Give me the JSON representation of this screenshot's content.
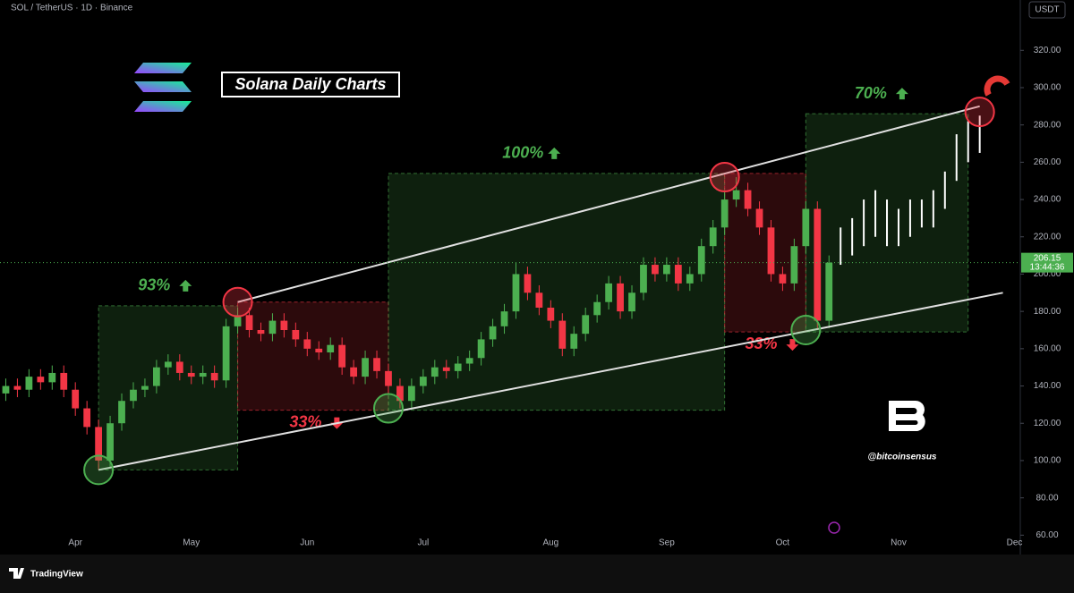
{
  "chart_data": {
    "type": "candlestick",
    "symbol": "SOL / TetherUS · 1D · Binance",
    "currency": "USDT",
    "title": "Solana Daily Charts",
    "watermark": "@bitcoinsensus",
    "brand": "TradingView",
    "categories": [
      "",
      null,
      null,
      null,
      null,
      null,
      "Apr",
      null,
      null,
      null,
      null,
      null,
      null,
      null,
      null,
      null,
      "May",
      null,
      null,
      null,
      null,
      null,
      null,
      null,
      null,
      null,
      "Jun",
      null,
      null,
      null,
      null,
      null,
      null,
      null,
      null,
      null,
      "Jul",
      null,
      null,
      null,
      null,
      null,
      null,
      null,
      null,
      null,
      null,
      "Aug",
      null,
      null,
      null,
      null,
      null,
      null,
      null,
      null,
      null,
      "Sep",
      null,
      null,
      null,
      null,
      null,
      null,
      null,
      null,
      null,
      "Oct",
      null,
      null,
      null,
      null,
      null,
      null,
      null,
      null,
      null,
      "Nov",
      null,
      null,
      null,
      null,
      null,
      null,
      null,
      null,
      null,
      "Dec"
    ],
    "candles": {
      "up_color": "#4caf50",
      "down_color": "#f23645",
      "open": [
        136,
        140,
        138,
        145,
        142,
        147,
        138,
        128,
        118,
        100,
        120,
        132,
        138,
        140,
        150,
        153,
        147,
        145,
        147,
        143,
        172,
        178,
        170,
        168,
        175,
        170,
        165,
        160,
        158,
        162,
        150,
        145,
        155,
        148,
        140,
        132,
        140,
        145,
        150,
        148,
        152,
        155,
        165,
        172,
        180,
        200,
        190,
        182,
        175,
        160,
        168,
        178,
        185,
        195,
        180,
        190,
        205,
        200,
        205,
        195,
        200,
        215,
        225,
        240,
        245,
        235,
        225,
        200,
        195,
        215,
        235,
        175,
        null,
        null,
        null,
        null,
        null,
        null,
        null,
        null,
        null,
        null,
        null,
        null,
        null,
        null,
        null,
        null
      ],
      "high": [
        144,
        144,
        149,
        149,
        151,
        151,
        142,
        132,
        122,
        124,
        136,
        142,
        144,
        154,
        157,
        157,
        151,
        151,
        151,
        176,
        182,
        182,
        174,
        179,
        179,
        174,
        169,
        164,
        166,
        166,
        154,
        159,
        159,
        152,
        144,
        144,
        149,
        154,
        154,
        156,
        159,
        169,
        176,
        184,
        206,
        204,
        194,
        186,
        179,
        172,
        182,
        189,
        199,
        199,
        194,
        209,
        209,
        209,
        209,
        204,
        219,
        229,
        244,
        252,
        249,
        239,
        229,
        204,
        219,
        239,
        239,
        210,
        null,
        null,
        null,
        null,
        null,
        null,
        null,
        null,
        null,
        null,
        null,
        null,
        null,
        null,
        null,
        null
      ],
      "low": [
        132,
        134,
        134,
        138,
        138,
        134,
        124,
        114,
        95,
        96,
        116,
        128,
        134,
        136,
        146,
        143,
        141,
        141,
        139,
        139,
        168,
        166,
        164,
        164,
        166,
        161,
        156,
        154,
        154,
        146,
        141,
        141,
        144,
        136,
        128,
        128,
        136,
        141,
        144,
        144,
        148,
        151,
        161,
        168,
        176,
        186,
        178,
        171,
        156,
        156,
        164,
        174,
        181,
        176,
        176,
        186,
        196,
        196,
        191,
        191,
        196,
        211,
        221,
        236,
        231,
        221,
        196,
        191,
        191,
        211,
        171,
        171,
        null,
        null,
        null,
        null,
        null,
        null,
        null,
        null,
        null,
        null,
        null,
        null,
        null,
        null,
        null,
        null
      ],
      "close": [
        140,
        138,
        145,
        142,
        147,
        138,
        128,
        118,
        100,
        120,
        132,
        138,
        140,
        150,
        153,
        147,
        145,
        147,
        143,
        172,
        178,
        170,
        168,
        175,
        170,
        165,
        160,
        158,
        162,
        150,
        145,
        155,
        148,
        140,
        132,
        140,
        145,
        150,
        148,
        152,
        155,
        165,
        172,
        180,
        200,
        190,
        182,
        175,
        160,
        168,
        178,
        185,
        195,
        180,
        190,
        205,
        200,
        205,
        195,
        200,
        215,
        225,
        240,
        245,
        235,
        225,
        200,
        195,
        215,
        235,
        175,
        206.15,
        null,
        null,
        null,
        null,
        null,
        null,
        null,
        null,
        null,
        null,
        null,
        null,
        null,
        null,
        null,
        null
      ]
    },
    "projection": {
      "color": "#ffffff",
      "high": [
        null,
        null,
        null,
        null,
        null,
        null,
        null,
        null,
        null,
        null,
        null,
        null,
        null,
        null,
        null,
        null,
        null,
        null,
        null,
        null,
        null,
        null,
        null,
        null,
        null,
        null,
        null,
        null,
        null,
        null,
        null,
        null,
        null,
        null,
        null,
        null,
        null,
        null,
        null,
        null,
        null,
        null,
        null,
        null,
        null,
        null,
        null,
        null,
        null,
        null,
        null,
        null,
        null,
        null,
        null,
        null,
        null,
        null,
        null,
        null,
        null,
        null,
        null,
        null,
        null,
        null,
        null,
        null,
        null,
        null,
        null,
        null,
        225,
        230,
        240,
        245,
        240,
        235,
        240,
        240,
        245,
        255,
        275,
        282,
        285,
        null,
        null,
        null
      ],
      "low": [
        null,
        null,
        null,
        null,
        null,
        null,
        null,
        null,
        null,
        null,
        null,
        null,
        null,
        null,
        null,
        null,
        null,
        null,
        null,
        null,
        null,
        null,
        null,
        null,
        null,
        null,
        null,
        null,
        null,
        null,
        null,
        null,
        null,
        null,
        null,
        null,
        null,
        null,
        null,
        null,
        null,
        null,
        null,
        null,
        null,
        null,
        null,
        null,
        null,
        null,
        null,
        null,
        null,
        null,
        null,
        null,
        null,
        null,
        null,
        null,
        null,
        null,
        null,
        null,
        null,
        null,
        null,
        null,
        null,
        null,
        null,
        null,
        205,
        210,
        215,
        220,
        215,
        215,
        220,
        225,
        225,
        235,
        250,
        260,
        265,
        null,
        null,
        null
      ]
    },
    "price_line": 206.15,
    "countdown": "13:44:36",
    "ylim": [
      52,
      347
    ],
    "yticks": [
      {
        "value": 60,
        "label": "60.00"
      },
      {
        "value": 80,
        "label": "80.00"
      },
      {
        "value": 100,
        "label": "100.00"
      },
      {
        "value": 120,
        "label": "120.00"
      },
      {
        "value": 140,
        "label": "140.00"
      },
      {
        "value": 160,
        "label": "160.00"
      },
      {
        "value": 180,
        "label": "180.00"
      },
      {
        "value": 200,
        "label": "200.00"
      },
      {
        "value": 220,
        "label": "220.00"
      },
      {
        "value": 240,
        "label": "240.00"
      },
      {
        "value": 260,
        "label": "260.00"
      },
      {
        "value": 280,
        "label": "280.00"
      },
      {
        "value": 300,
        "label": "300.00"
      },
      {
        "value": 320,
        "label": "320.00"
      }
    ],
    "zones": [
      {
        "from": 8,
        "to": 20,
        "low": 95,
        "high": 183,
        "color": "#4caf50",
        "direction": "up",
        "label": "93%"
      },
      {
        "from": 20,
        "to": 33,
        "low": 127,
        "high": 185,
        "color": "#f23645",
        "direction": "down",
        "label": "33%"
      },
      {
        "from": 33,
        "to": 62,
        "low": 127,
        "high": 254,
        "color": "#4caf50",
        "direction": "up",
        "label": "100%"
      },
      {
        "from": 62,
        "to": 69,
        "low": 169,
        "high": 254,
        "color": "#f23645",
        "direction": "down",
        "label": "33%"
      },
      {
        "from": 69,
        "to": 83,
        "low": 169,
        "high": 286,
        "color": "#4caf50",
        "direction": "up",
        "label": "70%"
      }
    ],
    "trendlines": [
      {
        "x": [
          20,
          84
        ],
        "y": [
          185,
          290
        ]
      },
      {
        "x": [
          8,
          86
        ],
        "y": [
          95,
          190
        ]
      }
    ],
    "pivots": {
      "x": [
        8,
        20,
        33,
        62,
        69,
        84
      ],
      "y": [
        95,
        185,
        128,
        252,
        170,
        287
      ],
      "colors": [
        "#4caf50",
        "#f23645",
        "#4caf50",
        "#f23645",
        "#4caf50",
        "#f23645"
      ]
    }
  }
}
